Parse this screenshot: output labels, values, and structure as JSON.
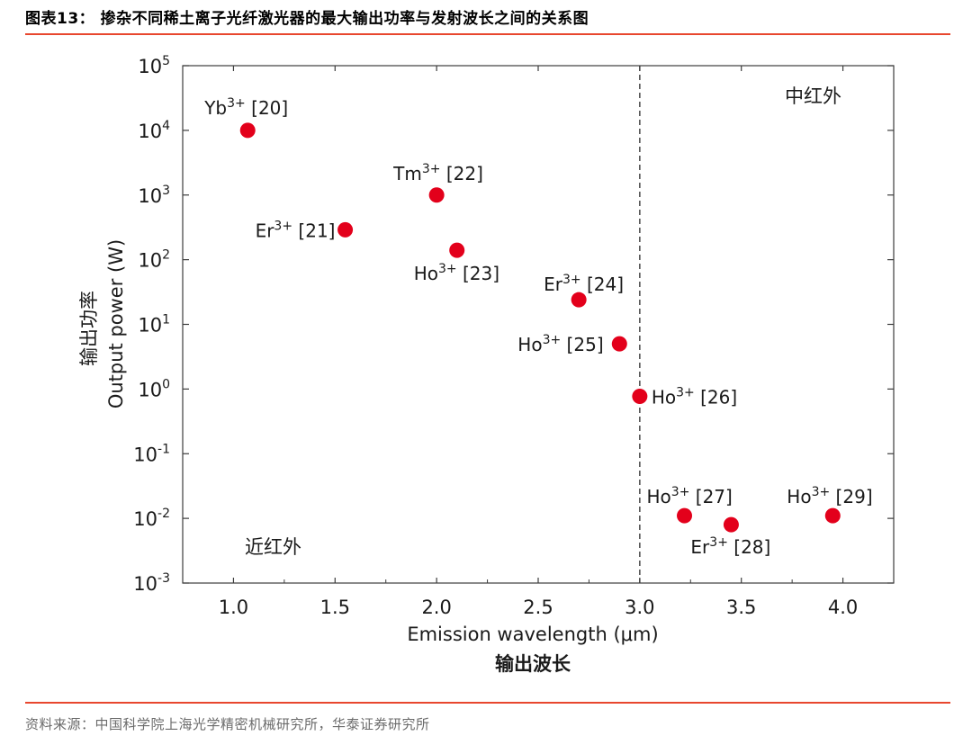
{
  "header": {
    "figure_title": "图表13：  掺杂不同稀土离子光纤激光器的最大输出功率与发射波长之间的关系图",
    "rule_color": "#e8472e"
  },
  "footer": {
    "source": "资料来源：中国科学院上海光学精密机械研究所，华泰证券研究所"
  },
  "chart_data": {
    "type": "scatter",
    "x_scale": "linear",
    "y_scale": "log",
    "xlabel": "Emission wavelength (μm)",
    "xlabel_cn": "输出波长",
    "ylabel": "Output power (W)",
    "ylabel_cn": "输出功率",
    "xlim": [
      0.75,
      4.25
    ],
    "ylim": [
      0.001,
      100000
    ],
    "x_ticks": [
      1.0,
      1.5,
      2.0,
      2.5,
      3.0,
      3.5,
      4.0
    ],
    "x_tick_labels": [
      "1.0",
      "1.5",
      "2.0",
      "2.5",
      "3.0",
      "3.5",
      "4.0"
    ],
    "y_tick_exponents": [
      -3,
      -2,
      -1,
      0,
      1,
      2,
      3,
      4,
      5
    ],
    "y_tick_base": "10",
    "divider_x": 3.0,
    "region_labels": [
      "近红外",
      "中红外"
    ],
    "grid": false,
    "marker_color": "#e3001b",
    "points": [
      {
        "ion": "Yb",
        "charge": "3+",
        "ref": "[20]",
        "x": 1.07,
        "y": 10000
      },
      {
        "ion": "Er",
        "charge": "3+",
        "ref": "[21]",
        "x": 1.55,
        "y": 290
      },
      {
        "ion": "Tm",
        "charge": "3+",
        "ref": "[22]",
        "x": 2.0,
        "y": 1000
      },
      {
        "ion": "Ho",
        "charge": "3+",
        "ref": "[23]",
        "x": 2.1,
        "y": 140
      },
      {
        "ion": "Er",
        "charge": "3+",
        "ref": "[24]",
        "x": 2.7,
        "y": 24
      },
      {
        "ion": "Ho",
        "charge": "3+",
        "ref": "[25]",
        "x": 2.9,
        "y": 5
      },
      {
        "ion": "Ho",
        "charge": "3+",
        "ref": "[26]",
        "x": 3.0,
        "y": 0.77
      },
      {
        "ion": "Ho",
        "charge": "3+",
        "ref": "[27]",
        "x": 3.22,
        "y": 0.011
      },
      {
        "ion": "Er",
        "charge": "3+",
        "ref": "[28]",
        "x": 3.45,
        "y": 0.008
      },
      {
        "ion": "Ho",
        "charge": "3+",
        "ref": "[29]",
        "x": 3.95,
        "y": 0.011
      }
    ]
  }
}
